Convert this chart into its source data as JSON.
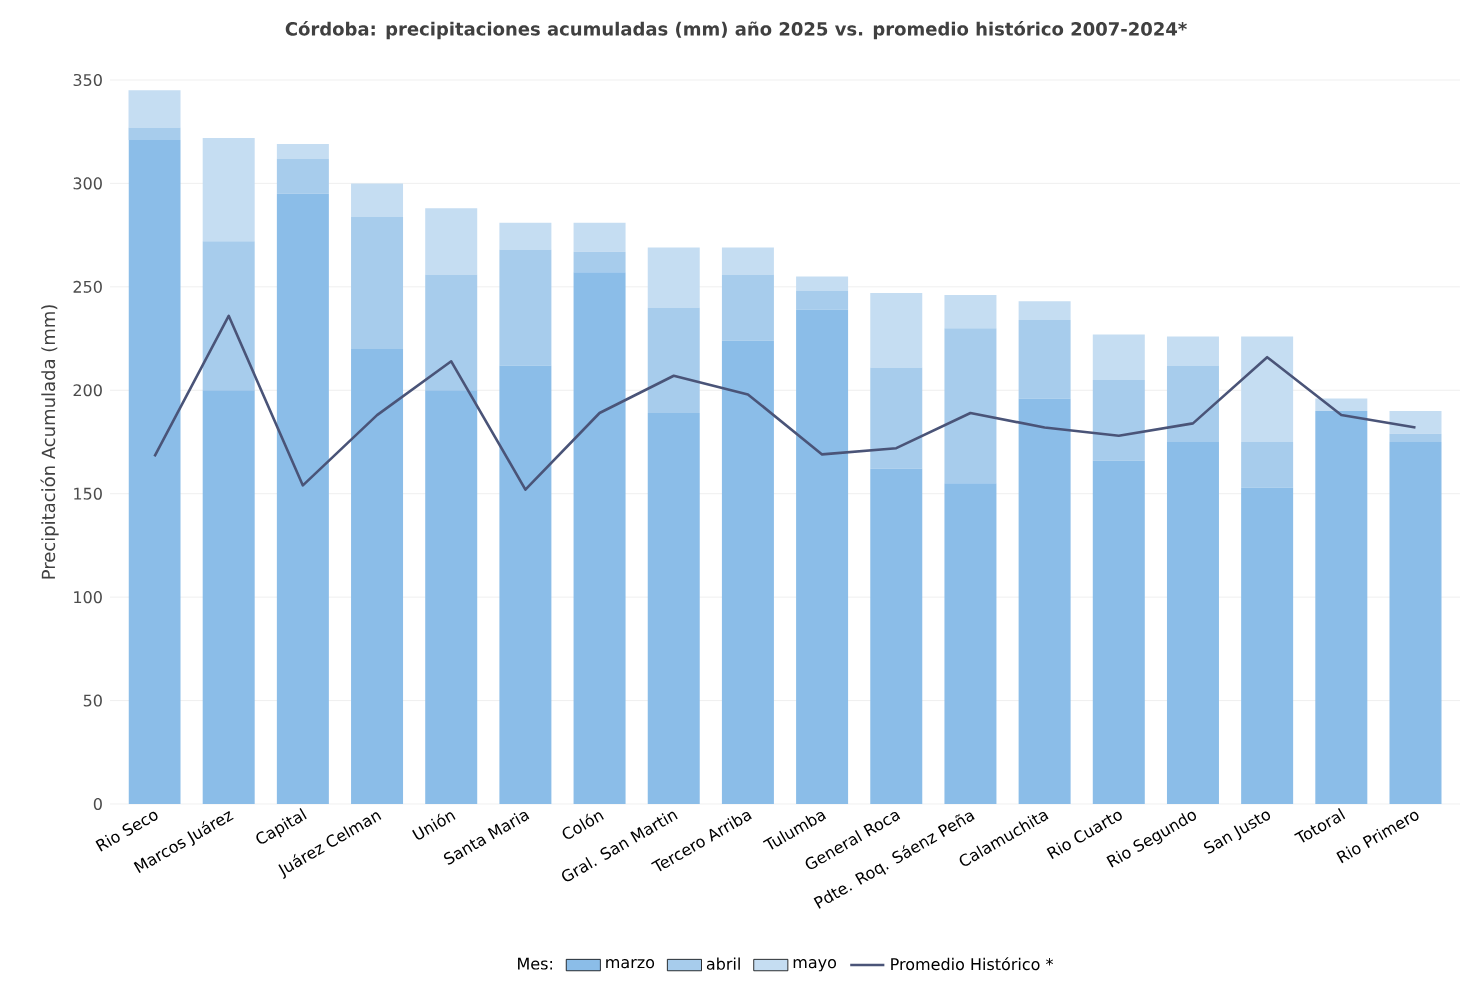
{
  "chart_data": {
    "type": "bar",
    "stacked": true,
    "title": "Córdoba: precipitaciones acumuladas (mm) año 2025 vs. promedio histórico 2007-2024*",
    "ylabel": "Precipitación Acumulada (mm)",
    "legend_title": "Mes:",
    "categories": [
      "Rio Seco",
      "Marcos Juárez",
      "Capital",
      "Juárez Celman",
      "Unión",
      "Santa Maria",
      "Colón",
      "Gral. San Martin",
      "Tercero Arriba",
      "Tulumba",
      "General Roca",
      "Pdte. Roq. Sáenz Peña",
      "Calamuchita",
      "Rio Cuarto",
      "Rio Segundo",
      "San Justo",
      "Totoral",
      "Rio Primero"
    ],
    "series": [
      {
        "name": "marzo",
        "color": "#8bbde8",
        "values": [
          321,
          200,
          295,
          220,
          200,
          212,
          257,
          189,
          224,
          239,
          162,
          155,
          196,
          166,
          175,
          153,
          190,
          175
        ]
      },
      {
        "name": "abril",
        "color": "#a7ccec",
        "values": [
          6,
          72,
          17,
          64,
          56,
          56,
          10,
          51,
          32,
          9,
          49,
          75,
          38,
          39,
          37,
          22,
          0,
          4
        ]
      },
      {
        "name": "mayo",
        "color": "#c5ddf2",
        "values": [
          18,
          50,
          7,
          16,
          32,
          13,
          14,
          29,
          13,
          7,
          36,
          16,
          9,
          22,
          14,
          51,
          6,
          11
        ]
      },
      {
        "name": "Promedio Histórico *",
        "type": "line",
        "color": "#4a5478",
        "values": [
          168,
          236,
          154,
          188,
          214,
          152,
          189,
          207,
          198,
          169,
          172,
          189,
          182,
          178,
          184,
          216,
          188,
          182
        ]
      }
    ],
    "ylim": [
      0,
      350
    ],
    "yticks": [
      0,
      50,
      100,
      150,
      200,
      250,
      300,
      350
    ],
    "grid": "y",
    "legend": "bottom"
  }
}
